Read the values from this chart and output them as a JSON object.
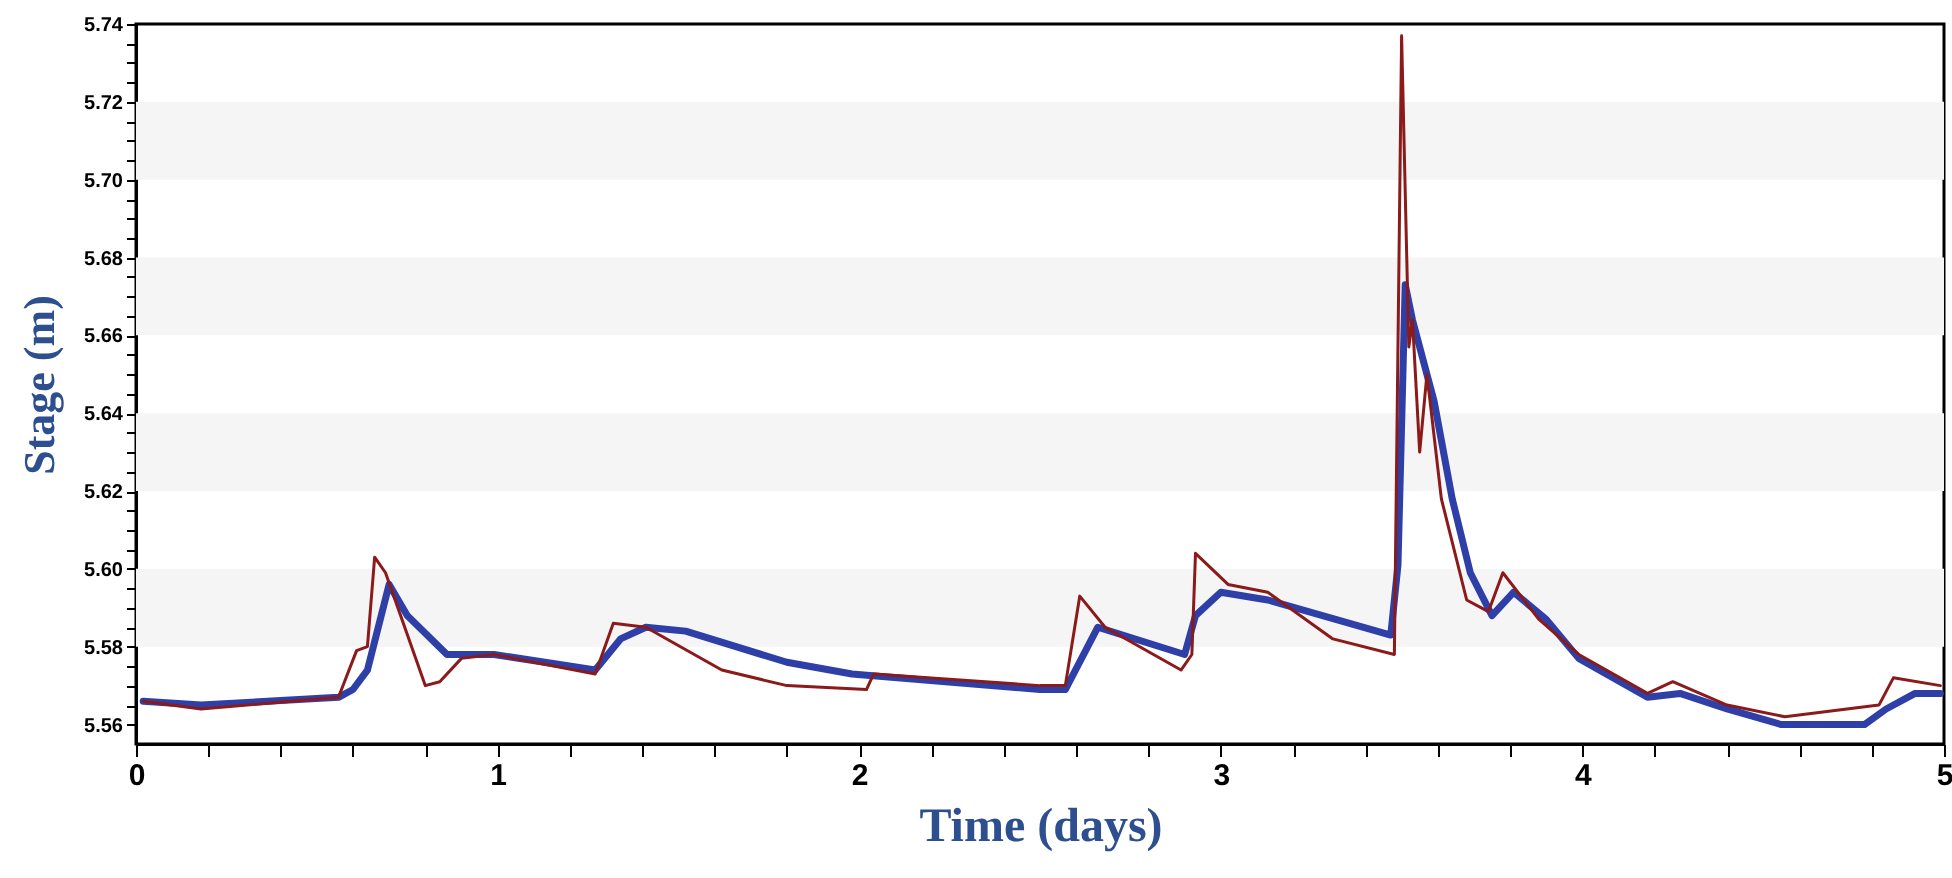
{
  "chart_data": {
    "type": "line",
    "xlabel": "Time (days)",
    "ylabel": "Stage (m)",
    "xlim": [
      0,
      5
    ],
    "ylim": [
      5.555,
      5.74
    ],
    "xticks": [
      0,
      {
        "value": 0.2,
        "label": null
      },
      {
        "value": 0.4,
        "label": null
      },
      {
        "value": 0.6,
        "label": null
      },
      {
        "value": 0.8,
        "label": null
      },
      1,
      {
        "value": 1.2,
        "label": null
      },
      {
        "value": 1.4,
        "label": null
      },
      {
        "value": 1.6,
        "label": null
      },
      {
        "value": 1.8,
        "label": null
      },
      2,
      {
        "value": 2.2,
        "label": null
      },
      {
        "value": 2.4,
        "label": null
      },
      {
        "value": 2.6,
        "label": null
      },
      {
        "value": 2.8,
        "label": null
      },
      3,
      {
        "value": 3.2,
        "label": null
      },
      {
        "value": 3.4,
        "label": null
      },
      {
        "value": 3.6,
        "label": null
      },
      {
        "value": 3.8,
        "label": null
      },
      4,
      {
        "value": 4.2,
        "label": null
      },
      {
        "value": 4.4,
        "label": null
      },
      {
        "value": 4.6,
        "label": null
      },
      {
        "value": 4.8,
        "label": null
      },
      5
    ],
    "yticks": [
      5.56,
      {
        "value": 5.565,
        "label": null
      },
      {
        "value": 5.57,
        "label": null
      },
      {
        "value": 5.575,
        "label": null
      },
      5.58,
      {
        "value": 5.585,
        "label": null
      },
      {
        "value": 5.59,
        "label": null
      },
      {
        "value": 5.595,
        "label": null
      },
      {
        "value": 5.6,
        "label": "5.60"
      },
      {
        "value": 5.605,
        "label": null
      },
      {
        "value": 5.61,
        "label": null
      },
      {
        "value": 5.615,
        "label": null
      },
      5.62,
      {
        "value": 5.625,
        "label": null
      },
      {
        "value": 5.63,
        "label": null
      },
      {
        "value": 5.635,
        "label": null
      },
      5.64,
      {
        "value": 5.645,
        "label": null
      },
      {
        "value": 5.65,
        "label": null
      },
      {
        "value": 5.655,
        "label": null
      },
      5.66,
      {
        "value": 5.665,
        "label": null
      },
      {
        "value": 5.67,
        "label": null
      },
      {
        "value": 5.675,
        "label": null
      },
      5.68,
      {
        "value": 5.685,
        "label": null
      },
      {
        "value": 5.69,
        "label": null
      },
      {
        "value": 5.695,
        "label": null
      },
      {
        "value": 5.7,
        "label": "5.70"
      },
      {
        "value": 5.705,
        "label": null
      },
      {
        "value": 5.71,
        "label": null
      },
      {
        "value": 5.715,
        "label": null
      },
      5.72,
      {
        "value": 5.725,
        "label": null
      },
      {
        "value": 5.73,
        "label": null
      },
      {
        "value": 5.735,
        "label": null
      },
      5.74
    ],
    "bands": [
      {
        "axis": "y",
        "from": 5.58,
        "to": 5.6,
        "color": "#f5f5f5"
      },
      {
        "axis": "y",
        "from": 5.62,
        "to": 5.64,
        "color": "#f5f5f5"
      },
      {
        "axis": "y",
        "from": 5.66,
        "to": 5.68,
        "color": "#f5f5f5"
      },
      {
        "axis": "y",
        "from": 5.7,
        "to": 5.72,
        "color": "#f5f5f5"
      }
    ],
    "series": [
      {
        "color": "#2f3fa8",
        "x": [
          0.02,
          0.18,
          0.56,
          0.6,
          0.64,
          0.7,
          0.75,
          0.86,
          0.99,
          1.27,
          1.34,
          1.41,
          1.52,
          1.8,
          1.98,
          2.5,
          2.57,
          2.66,
          2.9,
          2.93,
          3.0,
          3.13,
          3.47,
          3.49,
          3.51,
          3.53,
          3.59,
          3.64,
          3.69,
          3.75,
          3.81,
          3.9,
          3.99,
          4.18,
          4.27,
          4.4,
          4.55,
          4.78,
          4.84,
          4.92,
          4.99
        ],
        "values": [
          5.566,
          5.565,
          5.567,
          5.569,
          5.574,
          5.596,
          5.588,
          5.578,
          5.578,
          5.574,
          5.582,
          5.585,
          5.584,
          5.576,
          5.573,
          5.569,
          5.569,
          5.585,
          5.578,
          5.588,
          5.594,
          5.592,
          5.583,
          5.601,
          5.673,
          5.664,
          5.643,
          5.618,
          5.599,
          5.588,
          5.594,
          5.587,
          5.577,
          5.567,
          5.568,
          5.564,
          5.56,
          5.56,
          5.564,
          5.568,
          5.568
        ]
      },
      {
        "color": "#8b1a1a",
        "x": [
          0.02,
          0.18,
          0.56,
          0.61,
          0.64,
          0.66,
          0.69,
          0.8,
          0.84,
          0.9,
          0.99,
          1.27,
          1.32,
          1.41,
          1.62,
          1.8,
          2.02,
          2.04,
          2.5,
          2.57,
          2.61,
          2.68,
          2.89,
          2.92,
          2.93,
          3.02,
          3.13,
          3.31,
          3.48,
          3.5,
          3.52,
          3.53,
          3.55,
          3.57,
          3.61,
          3.68,
          3.74,
          3.78,
          3.88,
          3.99,
          4.18,
          4.25,
          4.4,
          4.56,
          4.82,
          4.86,
          4.99
        ],
        "values": [
          5.566,
          5.564,
          5.567,
          5.579,
          5.58,
          5.603,
          5.599,
          5.57,
          5.571,
          5.577,
          5.578,
          5.573,
          5.586,
          5.585,
          5.574,
          5.57,
          5.569,
          5.573,
          5.57,
          5.57,
          5.593,
          5.585,
          5.574,
          5.578,
          5.604,
          5.596,
          5.594,
          5.582,
          5.578,
          5.737,
          5.657,
          5.664,
          5.63,
          5.65,
          5.618,
          5.592,
          5.589,
          5.599,
          5.587,
          5.578,
          5.568,
          5.571,
          5.565,
          5.562,
          5.565,
          5.572,
          5.57
        ]
      }
    ]
  }
}
